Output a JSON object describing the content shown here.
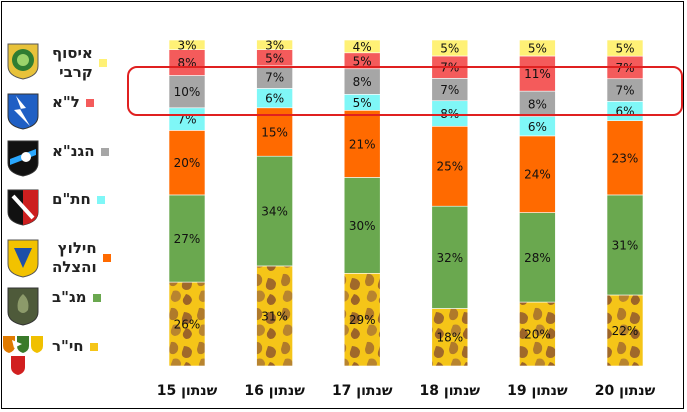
{
  "chart_data": {
    "type": "bar",
    "stacked": true,
    "percent_stacked": true,
    "categories": [
      "שנתון 15",
      "שנתון 16",
      "שנתון 17",
      "שנתון 18",
      "שנתון 19",
      "שנתון 20"
    ],
    "series": [
      {
        "name": "חי\"ר",
        "color": "#f5c518",
        "pattern": "giraffe",
        "values": [
          26,
          31,
          29,
          18,
          20,
          22
        ]
      },
      {
        "name": "מג\"ב",
        "color": "#6aa84f",
        "values": [
          27,
          34,
          30,
          32,
          28,
          31
        ]
      },
      {
        "name": "חילוץ והצלה",
        "color": "#ff6a00",
        "values": [
          20,
          15,
          21,
          25,
          24,
          23
        ]
      },
      {
        "name": "חת\"ם",
        "color": "#7ff7f7",
        "values": [
          7,
          6,
          5,
          8,
          6,
          6
        ]
      },
      {
        "name": "הגנ\"א",
        "color": "#a6a6a6",
        "values": [
          10,
          7,
          8,
          7,
          8,
          7
        ]
      },
      {
        "name": "ל\"א",
        "color": "#f45b5b",
        "values": [
          8,
          5,
          5,
          7,
          11,
          7
        ]
      },
      {
        "name": "איסוף קרבי",
        "color": "#fff176",
        "values": [
          3,
          3,
          4,
          5,
          5,
          5
        ]
      }
    ],
    "data_labels": true,
    "label_suffix": "%",
    "highlight": {
      "series": [
        "חת\"ם",
        "הגנ\"א",
        "ל\"א"
      ],
      "color": "#e02020"
    },
    "legend": {
      "position": "left",
      "items": [
        {
          "label": "איסוף\nקרבי",
          "color": "#fff176"
        },
        {
          "label": "ל\"א",
          "color": "#f45b5b"
        },
        {
          "label": "הגנ\"א",
          "color": "#a6a6a6"
        },
        {
          "label": "חת\"ם",
          "color": "#7ff7f7"
        },
        {
          "label": "חילוץ\nוהצלה",
          "color": "#ff6a00"
        },
        {
          "label": "מג\"ב",
          "color": "#6aa84f"
        },
        {
          "label": "חי\"ר",
          "color": "#f5c518"
        }
      ]
    },
    "emblems": [
      "green-round-insignia-icon",
      "blue-lightning-insignia-icon",
      "black-white-blue-insignia-icon",
      "black-red-sword-insignia-icon",
      "yellow-blue-rescue-insignia-icon",
      "olive-shield-insignia-icon",
      "infantry-brigades-insignia-icon"
    ],
    "grid": false,
    "ylim": [
      0,
      100
    ]
  }
}
